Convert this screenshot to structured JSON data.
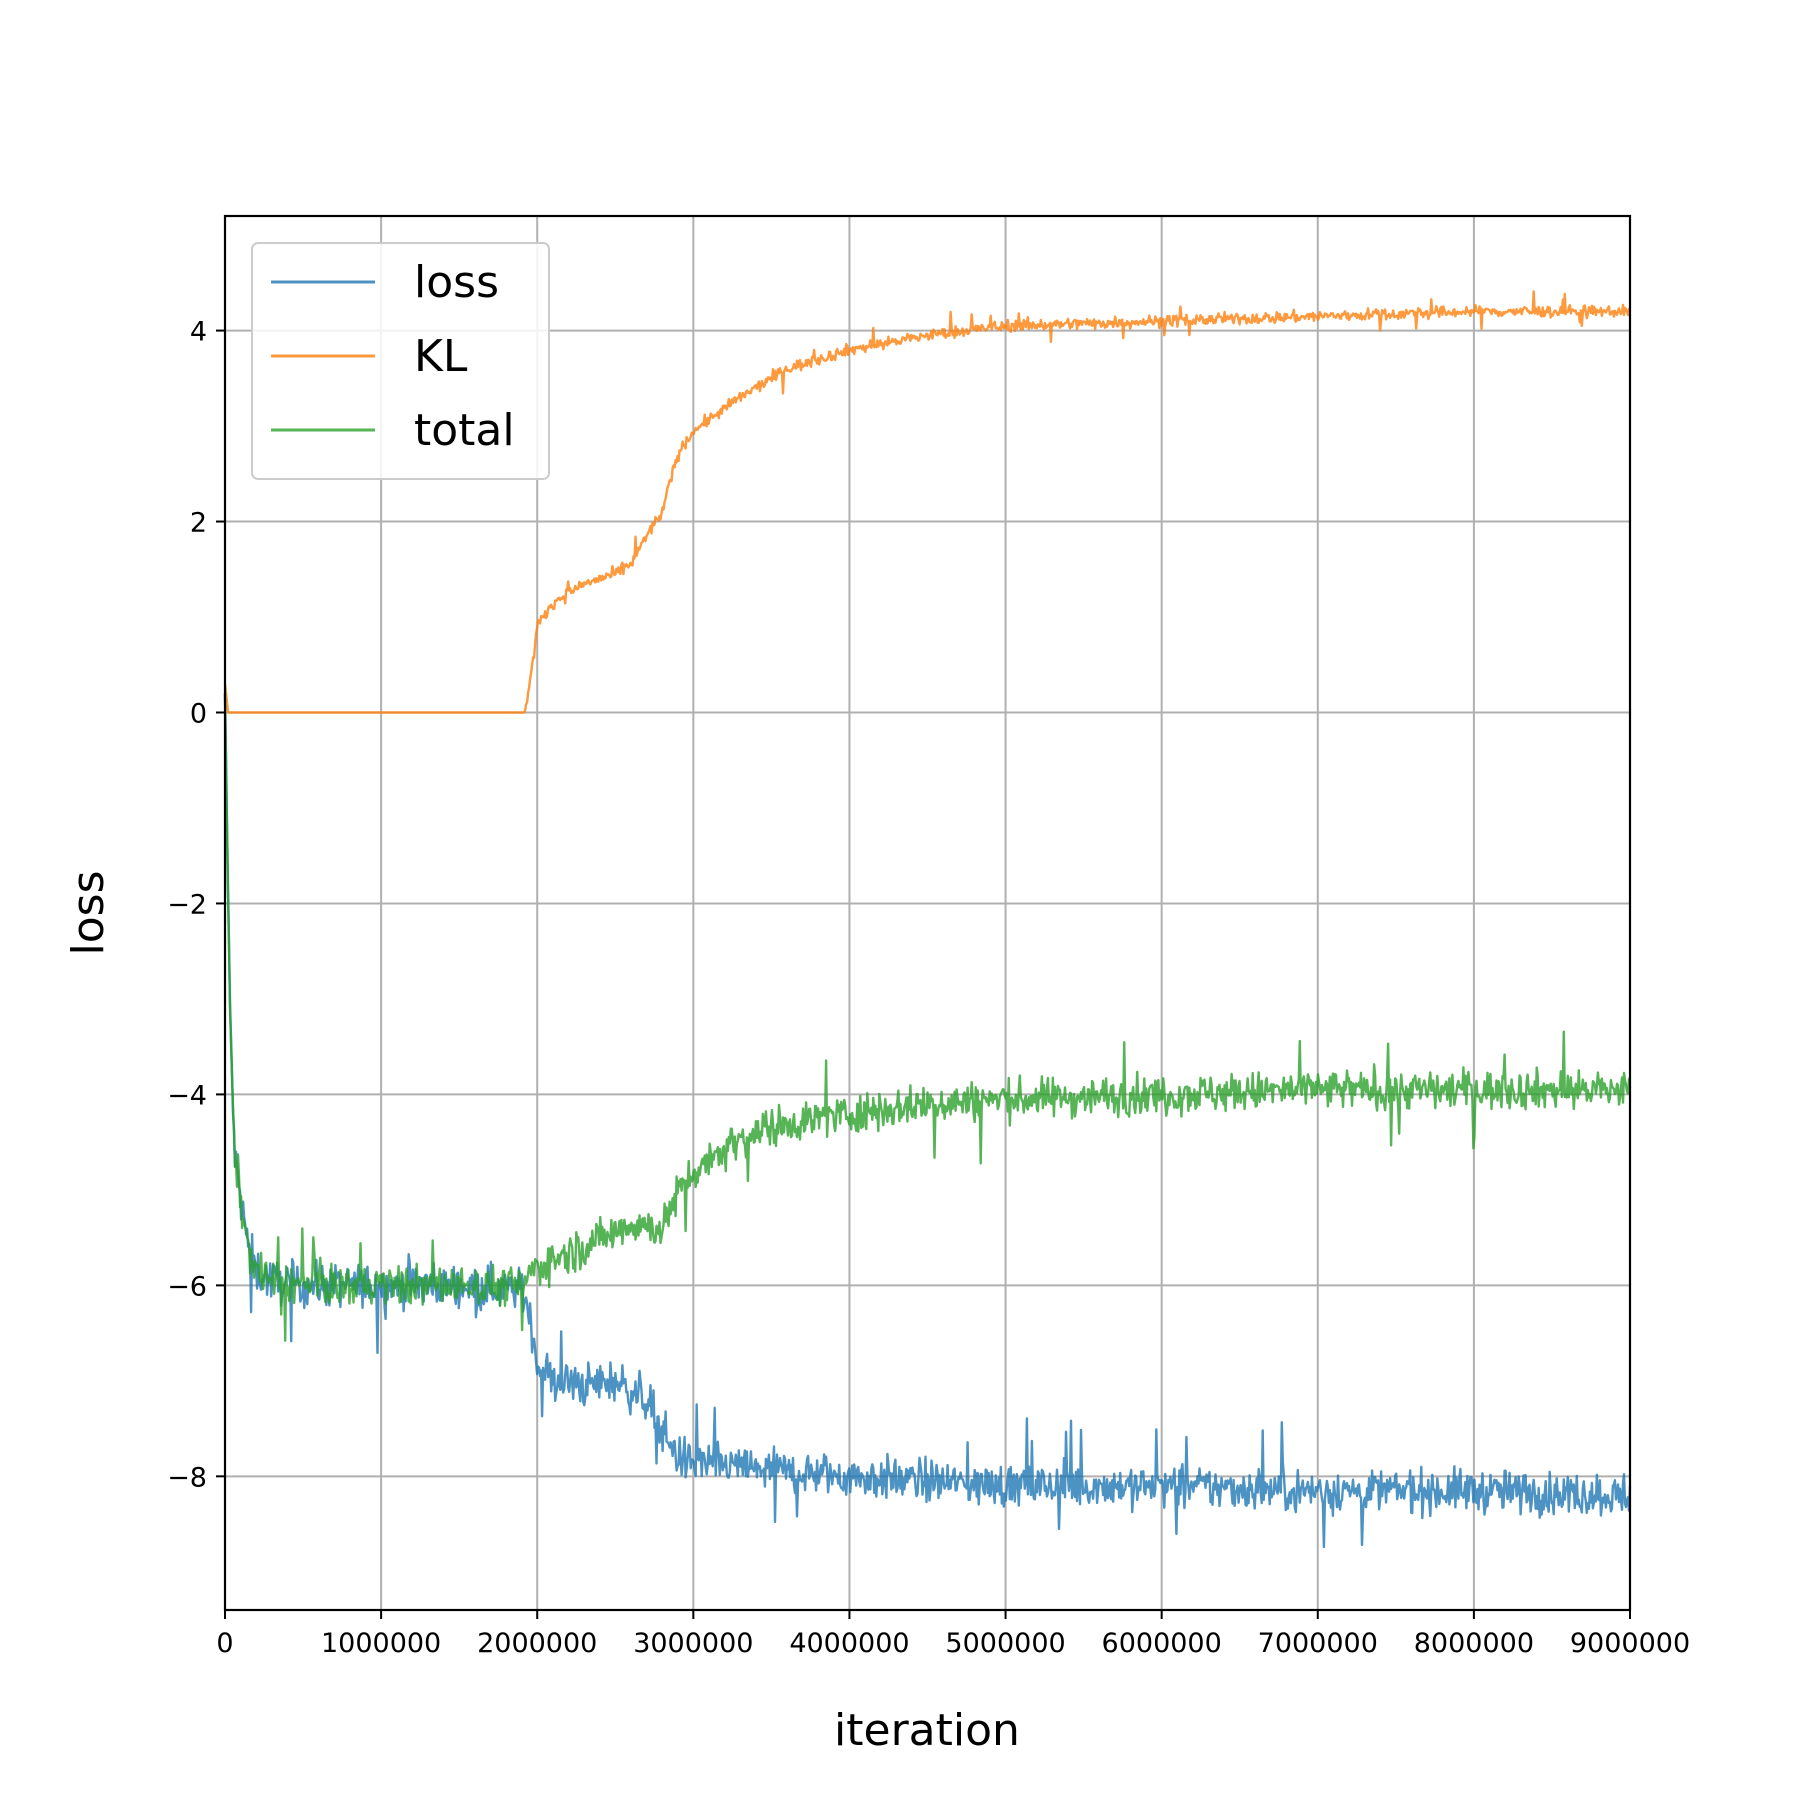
{
  "chart_data": {
    "type": "line",
    "title": "",
    "xlabel": "iteration",
    "ylabel": "loss",
    "xlim": [
      0,
      9000000
    ],
    "ylim": [
      -9.4,
      5.2
    ],
    "x_ticks": [
      0,
      1000000,
      2000000,
      3000000,
      4000000,
      5000000,
      6000000,
      7000000,
      8000000,
      9000000
    ],
    "x_tick_labels": [
      "0",
      "1000000",
      "2000000",
      "3000000",
      "4000000",
      "5000000",
      "6000000",
      "7000000",
      "8000000",
      "9000000"
    ],
    "y_ticks": [
      -8,
      -6,
      -4,
      -2,
      0,
      2,
      4
    ],
    "y_tick_labels": [
      "−8",
      "−6",
      "−4",
      "−2",
      "0",
      "2",
      "4"
    ],
    "grid": true,
    "legend_position": "top-left",
    "series": [
      {
        "name": "loss",
        "color": "#1f77b4",
        "noise": 0.22,
        "x": [
          0,
          30000,
          60000,
          100000,
          150000,
          200000,
          300000,
          500000,
          1000000,
          1500000,
          1900000,
          1950000,
          2000000,
          2100000,
          2300000,
          2500000,
          2700000,
          2800000,
          2900000,
          3000000,
          3300000,
          3600000,
          4000000,
          4500000,
          5000000,
          6000000,
          7000000,
          8000000,
          9000000
        ],
        "y": [
          0.2,
          -3.0,
          -4.6,
          -5.1,
          -5.6,
          -5.85,
          -5.95,
          -6.0,
          -6.0,
          -6.0,
          -6.05,
          -6.3,
          -6.8,
          -7.0,
          -7.05,
          -7.0,
          -7.2,
          -7.5,
          -7.8,
          -7.85,
          -7.9,
          -7.95,
          -8.0,
          -8.05,
          -8.1,
          -8.1,
          -8.15,
          -8.15,
          -8.2
        ]
      },
      {
        "name": "KL",
        "color": "#ff7f0e",
        "noise": 0.06,
        "x": [
          0,
          20000,
          100000,
          1000000,
          1920000,
          1950000,
          1970000,
          2000000,
          2100000,
          2300000,
          2500000,
          2600000,
          2700000,
          2800000,
          2900000,
          3000000,
          3300000,
          3600000,
          4000000,
          4500000,
          5000000,
          6000000,
          7000000,
          8000000,
          9000000
        ],
        "y": [
          0.3,
          0.0,
          0.0,
          0.0,
          0.0,
          0.3,
          0.5,
          0.9,
          1.15,
          1.35,
          1.45,
          1.55,
          1.85,
          2.1,
          2.7,
          2.95,
          3.3,
          3.6,
          3.8,
          3.95,
          4.05,
          4.1,
          4.15,
          4.2,
          4.2
        ]
      },
      {
        "name": "total",
        "color": "#2ca02c",
        "noise": 0.2,
        "x": [
          0,
          30000,
          60000,
          100000,
          150000,
          200000,
          300000,
          500000,
          1000000,
          1500000,
          1900000,
          1950000,
          2000000,
          2300000,
          2600000,
          2800000,
          2900000,
          3000000,
          3300000,
          3600000,
          4000000,
          4500000,
          5000000,
          6000000,
          7000000,
          8000000,
          9000000
        ],
        "y": [
          0.2,
          -3.0,
          -4.6,
          -5.1,
          -5.6,
          -5.85,
          -5.95,
          -6.0,
          -6.0,
          -6.0,
          -6.0,
          -5.9,
          -5.8,
          -5.6,
          -5.35,
          -5.4,
          -5.05,
          -4.8,
          -4.45,
          -4.3,
          -4.2,
          -4.1,
          -4.05,
          -4.0,
          -3.95,
          -3.95,
          -3.95
        ]
      }
    ]
  }
}
